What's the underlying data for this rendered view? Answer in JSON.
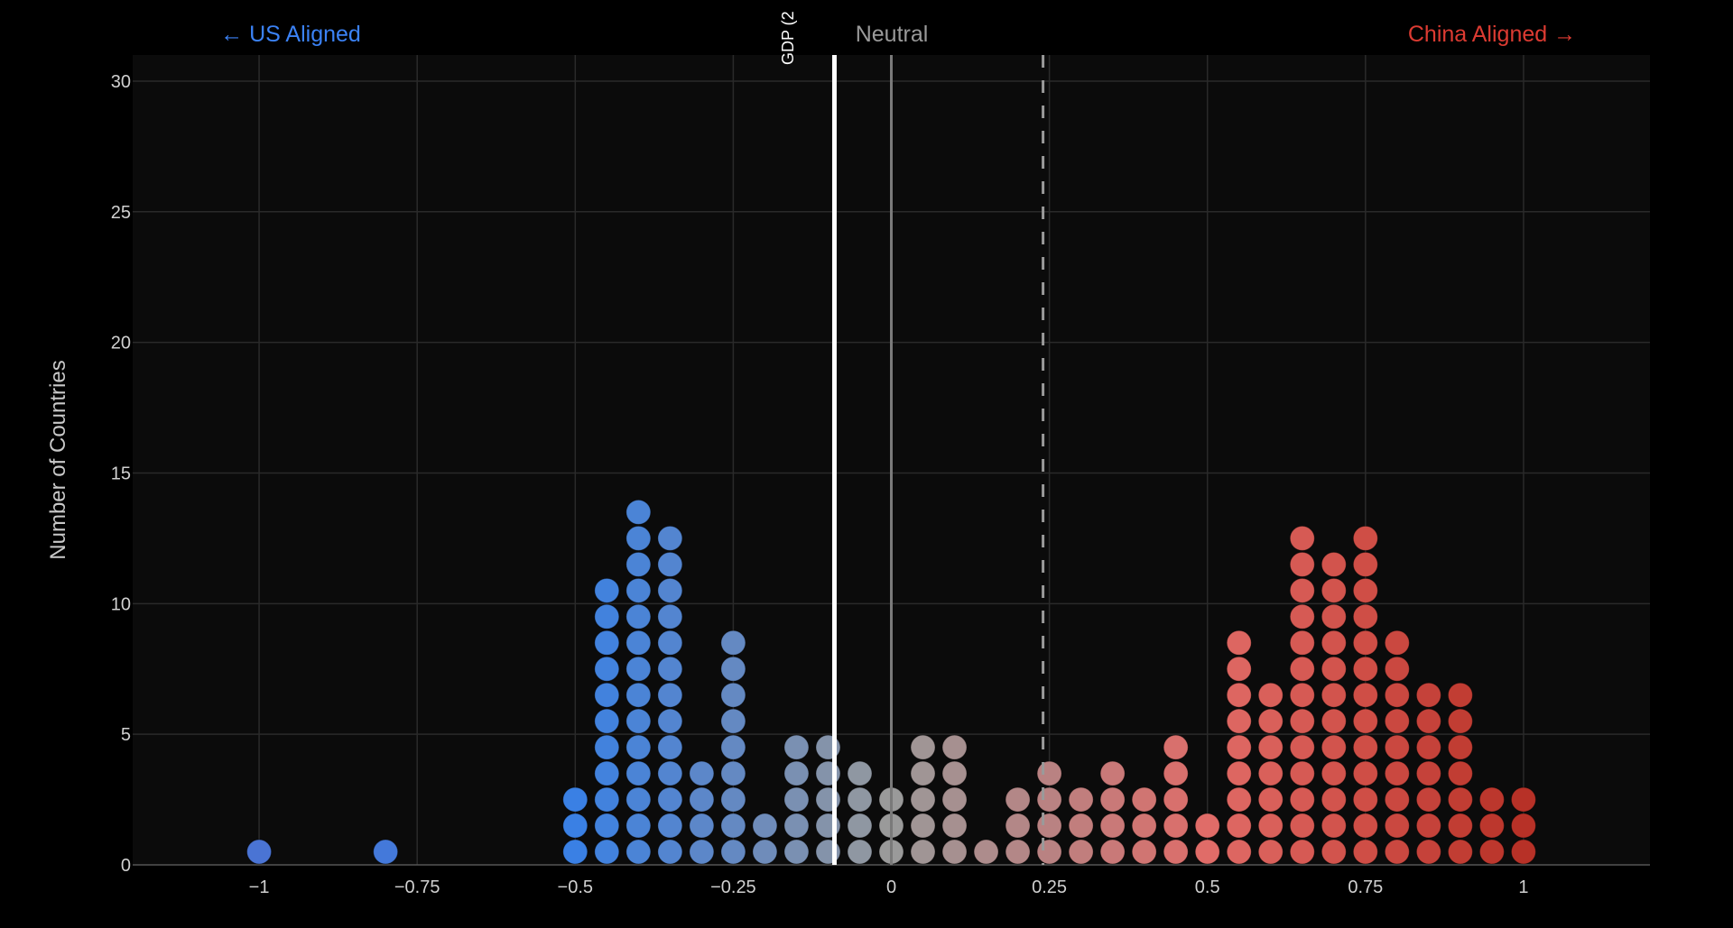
{
  "chart_data": {
    "type": "scatter",
    "subtype": "dot-histogram",
    "xlim": [
      -1.2,
      1.2
    ],
    "ylim": [
      0,
      31
    ],
    "ylabel": "Number of Countries",
    "xlabel": "",
    "grid": true,
    "x_ticks": [
      -1,
      -0.75,
      -0.5,
      -0.25,
      0,
      0.25,
      0.5,
      0.75,
      1
    ],
    "x_tick_labels": [
      "−1",
      "−0.75",
      "−0.5",
      "−0.25",
      "0",
      "0.25",
      "0.5",
      "0.75",
      "1"
    ],
    "y_ticks": [
      0,
      5,
      10,
      15,
      20,
      25,
      30
    ],
    "y_tick_labels": [
      "0",
      "5",
      "10",
      "15",
      "20",
      "25",
      "30"
    ],
    "bins": [
      -1,
      -0.8,
      -0.5,
      -0.45,
      -0.4,
      -0.35,
      -0.3,
      -0.25,
      -0.2,
      -0.15,
      -0.1,
      -0.05,
      0,
      0.05,
      0.1,
      0.15,
      0.2,
      0.25,
      0.3,
      0.35,
      0.4,
      0.45,
      0.5,
      0.55,
      0.6,
      0.65,
      0.7,
      0.75,
      0.8,
      0.85,
      0.9,
      0.95,
      1
    ],
    "counts": [
      1,
      1,
      3,
      11,
      14,
      13,
      4,
      9,
      2,
      5,
      5,
      4,
      3,
      5,
      5,
      1,
      3,
      4,
      3,
      4,
      3,
      5,
      2,
      9,
      7,
      13,
      12,
      13,
      9,
      7,
      7,
      3,
      3
    ],
    "reference_lines": [
      {
        "x": -0.09,
        "style": "solid",
        "color": "#ffffff",
        "label": "GDP (2"
      },
      {
        "x": 0,
        "style": "solid",
        "color": "#7a7a7a",
        "label": "Neutral"
      },
      {
        "x": 0.24,
        "style": "dashed",
        "color": "#9a9a9a"
      }
    ],
    "annotations": {
      "left": "← US Aligned",
      "right": "China Aligned →"
    },
    "colors": {
      "us": "#3b82f6",
      "china": "#dc3b32",
      "neutral": "#9a9a9a",
      "background": "#0b0b0b",
      "scale": [
        {
          "at": -1,
          "color": "#4a74d4"
        },
        {
          "at": -0.5,
          "color": "#3a80e4"
        },
        {
          "at": -0.25,
          "color": "#6489c2"
        },
        {
          "at": 0,
          "color": "#9a9a9a"
        },
        {
          "at": 0.25,
          "color": "#b98282"
        },
        {
          "at": 0.5,
          "color": "#e06c68"
        },
        {
          "at": 0.75,
          "color": "#cf4e46"
        },
        {
          "at": 1,
          "color": "#b73127"
        }
      ]
    }
  }
}
